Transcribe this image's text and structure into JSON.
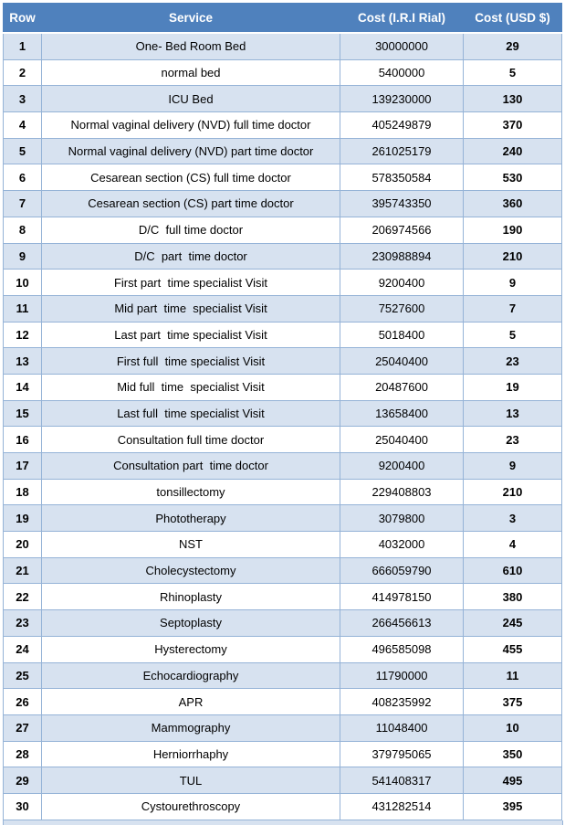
{
  "table": {
    "headers": [
      "Row",
      "Service",
      "Cost (I.R.I Rial)",
      "Cost (USD $)"
    ],
    "rows": [
      {
        "row": "1",
        "service": "One- Bed Room Bed",
        "rial": "30000000",
        "usd": "29"
      },
      {
        "row": "2",
        "service": "normal bed",
        "rial": "5400000",
        "usd": "5"
      },
      {
        "row": "3",
        "service": "ICU Bed",
        "rial": "139230000",
        "usd": "130"
      },
      {
        "row": "4",
        "service": "Normal vaginal delivery (NVD) full time doctor",
        "rial": "405249879",
        "usd": "370"
      },
      {
        "row": "5",
        "service": "Normal vaginal delivery (NVD) part time doctor",
        "rial": "261025179",
        "usd": "240"
      },
      {
        "row": "6",
        "service": "Cesarean section (CS) full time doctor",
        "rial": "578350584",
        "usd": "530"
      },
      {
        "row": "7",
        "service": "Cesarean section (CS) part time doctor",
        "rial": "395743350",
        "usd": "360"
      },
      {
        "row": "8",
        "service": "D/C  full time doctor",
        "rial": "206974566",
        "usd": "190"
      },
      {
        "row": "9",
        "service": "D/C  part  time doctor",
        "rial": "230988894",
        "usd": "210"
      },
      {
        "row": "10",
        "service": "First part  time specialist Visit",
        "rial": "9200400",
        "usd": "9"
      },
      {
        "row": "11",
        "service": "Mid part  time  specialist Visit",
        "rial": "7527600",
        "usd": "7"
      },
      {
        "row": "12",
        "service": "Last part  time specialist Visit",
        "rial": "5018400",
        "usd": "5"
      },
      {
        "row": "13",
        "service": "First full  time specialist Visit",
        "rial": "25040400",
        "usd": "23"
      },
      {
        "row": "14",
        "service": "Mid full  time  specialist Visit",
        "rial": "20487600",
        "usd": "19"
      },
      {
        "row": "15",
        "service": "Last full  time specialist Visit",
        "rial": "13658400",
        "usd": "13"
      },
      {
        "row": "16",
        "service": "Consultation full time doctor",
        "rial": "25040400",
        "usd": "23"
      },
      {
        "row": "17",
        "service": "Consultation part  time doctor",
        "rial": "9200400",
        "usd": "9"
      },
      {
        "row": "18",
        "service": "tonsillectomy",
        "rial": "229408803",
        "usd": "210"
      },
      {
        "row": "19",
        "service": "Phototherapy",
        "rial": "3079800",
        "usd": "3"
      },
      {
        "row": "20",
        "service": "NST",
        "rial": "4032000",
        "usd": "4"
      },
      {
        "row": "21",
        "service": "Cholecystectomy",
        "rial": "666059790",
        "usd": "610"
      },
      {
        "row": "22",
        "service": "Rhinoplasty",
        "rial": "414978150",
        "usd": "380"
      },
      {
        "row": "23",
        "service": "Septoplasty",
        "rial": "266456613",
        "usd": "245"
      },
      {
        "row": "24",
        "service": "Hysterectomy",
        "rial": "496585098",
        "usd": "455"
      },
      {
        "row": "25",
        "service": "Echocardiography",
        "rial": "11790000",
        "usd": "11"
      },
      {
        "row": "26",
        "service": "APR",
        "rial": "408235992",
        "usd": "375"
      },
      {
        "row": "27",
        "service": "Mammography",
        "rial": "11048400",
        "usd": "10"
      },
      {
        "row": "28",
        "service": "Herniorrhaphy",
        "rial": "379795065",
        "usd": "350"
      },
      {
        "row": "29",
        "service": "TUL",
        "rial": "541408317",
        "usd": "495"
      },
      {
        "row": "30",
        "service": "Cystourethroscopy",
        "rial": "431282514",
        "usd": "395"
      }
    ]
  },
  "colors": {
    "header_bg": "#4F81BD",
    "header_text": "#FFFFFF",
    "shaded_row_bg": "#D7E2F0",
    "plain_row_bg": "#FFFFFF",
    "border": "#95B3D7",
    "cell_text": "#000000"
  }
}
